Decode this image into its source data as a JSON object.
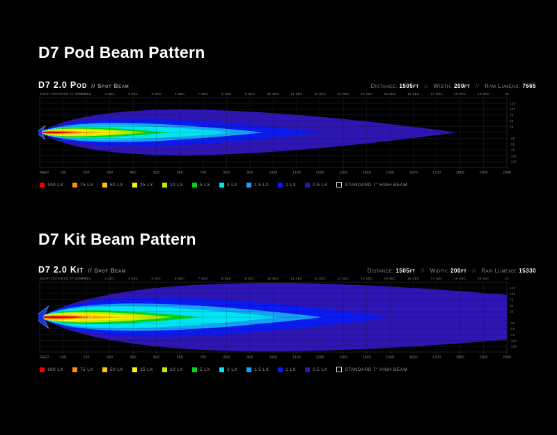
{
  "page": {
    "background": "#000000"
  },
  "separator": "//",
  "sections": [
    {
      "heading": "D7 Pod Beam Pattern"
    },
    {
      "heading": "D7 Kit Beam Pattern"
    }
  ],
  "legend": {
    "items": [
      {
        "label": "100 LX",
        "color": "#f50000",
        "type": "fill"
      },
      {
        "label": "75 LX",
        "color": "#ff9100",
        "type": "fill"
      },
      {
        "label": "50 LX",
        "color": "#ffc400",
        "type": "fill"
      },
      {
        "label": "25 LX",
        "color": "#fff200",
        "type": "fill"
      },
      {
        "label": "10 LX",
        "color": "#c3ea00",
        "type": "fill"
      },
      {
        "label": "5 LX",
        "color": "#00d41e",
        "type": "fill"
      },
      {
        "label": "3 LX",
        "color": "#00e4f4",
        "type": "fill"
      },
      {
        "label": "1.5 LX",
        "color": "#14a4f5",
        "type": "fill"
      },
      {
        "label": "1 LX",
        "color": "#0b1af0",
        "type": "fill"
      },
      {
        "label": "0.5 LX",
        "color": "#2e16b4",
        "type": "fill"
      },
      {
        "label": "Standard 7\" High Beam",
        "color": "none",
        "type": "outline"
      }
    ]
  },
  "chart_data": [
    {
      "type": "contour",
      "title": "D7 2.0 Pod",
      "subtitle": "// Spot Beam",
      "stats": [
        {
          "label": "Distance:",
          "value": "1505ft"
        },
        {
          "label": "Width:",
          "value": "200ft"
        },
        {
          "label": "Raw Lumens:",
          "value": "7665"
        }
      ],
      "top_axis": {
        "label": "Sight Distance at 60mph",
        "ticks": [
          {
            "ft": 200,
            "label": "2 sec"
          },
          {
            "ft": 300,
            "label": "3 sec"
          },
          {
            "ft": 400,
            "label": "4 sec"
          },
          {
            "ft": 500,
            "label": "5 sec"
          },
          {
            "ft": 600,
            "label": "6 sec"
          },
          {
            "ft": 700,
            "label": "7 sec"
          },
          {
            "ft": 800,
            "label": "8 sec"
          },
          {
            "ft": 900,
            "label": "9 sec"
          },
          {
            "ft": 1000,
            "label": "10 sec"
          },
          {
            "ft": 1100,
            "label": "11 sec"
          },
          {
            "ft": 1200,
            "label": "12 sec"
          },
          {
            "ft": 1300,
            "label": "13 sec"
          },
          {
            "ft": 1400,
            "label": "14 sec"
          },
          {
            "ft": 1500,
            "label": "15 sec"
          },
          {
            "ft": 1600,
            "label": "16 sec"
          },
          {
            "ft": 1700,
            "label": "17 sec"
          },
          {
            "ft": 1800,
            "label": "18 sec"
          },
          {
            "ft": 1900,
            "label": "19 sec"
          },
          {
            "ft": 2000,
            "label": "20"
          }
        ]
      },
      "x_axis": {
        "unit_label": "FEET",
        "min_ft": 0,
        "max_ft": 2000,
        "ticks_ft": [
          100,
          200,
          300,
          400,
          500,
          600,
          700,
          800,
          900,
          1000,
          1100,
          1200,
          1300,
          1400,
          1500,
          1600,
          1700,
          1800,
          1900,
          2000
        ]
      },
      "y_axis": {
        "min_ft": -150,
        "max_ft": 150,
        "ticks_ft": [
          125,
          100,
          75,
          50,
          25,
          -25,
          -50,
          -75,
          -100,
          -125
        ]
      },
      "contours": [
        {
          "lux": "100 lx",
          "color": "#f50000",
          "length_ft": 155,
          "half_width_ft": 4
        },
        {
          "lux": "75 lx",
          "color": "#ff9100",
          "length_ft": 215,
          "half_width_ft": 6.5
        },
        {
          "lux": "50 lx",
          "color": "#ffc400",
          "length_ft": 285,
          "half_width_ft": 9
        },
        {
          "lux": "25 lx",
          "color": "#fff200",
          "length_ft": 380,
          "half_width_ft": 12.5
        },
        {
          "lux": "10 lx",
          "color": "#c3ea00",
          "length_ft": 460,
          "half_width_ft": 17
        },
        {
          "lux": "5 lx",
          "color": "#00d41e",
          "length_ft": 555,
          "half_width_ft": 22
        },
        {
          "lux": "3 lx",
          "color": "#00e4f4",
          "length_ft": 830,
          "half_width_ft": 32
        },
        {
          "lux": "1.5 lx",
          "color": "#14a4f5",
          "length_ft": 960,
          "half_width_ft": 42
        },
        {
          "lux": "1 lx",
          "color": "#0b1af0",
          "length_ft": 1210,
          "half_width_ft": 60
        },
        {
          "lux": "0.5 lx",
          "color": "#2e16b4",
          "length_ft": 1790,
          "half_width_ft": 100
        }
      ],
      "reference_beam": {
        "label": "Standard 7\" High Beam",
        "length_ft": 215,
        "half_width_ft": 15
      },
      "arrow_scale": 1
    },
    {
      "type": "contour",
      "title": "D7 2.0 Kit",
      "subtitle": "// Spot Beam",
      "stats": [
        {
          "label": "Distance:",
          "value": "1505ft"
        },
        {
          "label": "Width:",
          "value": "200ft"
        },
        {
          "label": "Raw Lumens:",
          "value": "15330"
        }
      ],
      "top_axis": {
        "label": "Sight Distance at 60mph",
        "ticks": [
          {
            "ft": 200,
            "label": "2 sec"
          },
          {
            "ft": 300,
            "label": "3 sec"
          },
          {
            "ft": 400,
            "label": "4 sec"
          },
          {
            "ft": 500,
            "label": "5 sec"
          },
          {
            "ft": 600,
            "label": "6 sec"
          },
          {
            "ft": 700,
            "label": "7 sec"
          },
          {
            "ft": 800,
            "label": "8 sec"
          },
          {
            "ft": 900,
            "label": "9 sec"
          },
          {
            "ft": 1000,
            "label": "10 sec"
          },
          {
            "ft": 1100,
            "label": "11 sec"
          },
          {
            "ft": 1200,
            "label": "12 sec"
          },
          {
            "ft": 1300,
            "label": "13 sec"
          },
          {
            "ft": 1400,
            "label": "14 sec"
          },
          {
            "ft": 1500,
            "label": "15 sec"
          },
          {
            "ft": 1600,
            "label": "16 sec"
          },
          {
            "ft": 1700,
            "label": "17 sec"
          },
          {
            "ft": 1800,
            "label": "18 sec"
          },
          {
            "ft": 1900,
            "label": "19 sec"
          },
          {
            "ft": 2000,
            "label": "20"
          }
        ]
      },
      "x_axis": {
        "unit_label": "FEET",
        "min_ft": 0,
        "max_ft": 2000,
        "ticks_ft": [
          100,
          200,
          300,
          400,
          500,
          600,
          700,
          800,
          900,
          1000,
          1100,
          1200,
          1300,
          1400,
          1500,
          1600,
          1700,
          1800,
          1900,
          2000
        ]
      },
      "y_axis": {
        "min_ft": -150,
        "max_ft": 150,
        "ticks_ft": [
          125,
          100,
          75,
          50,
          25,
          -25,
          -50,
          -75,
          -100,
          -125
        ]
      },
      "contours": [
        {
          "lux": "100 lx",
          "color": "#f50000",
          "length_ft": 190,
          "half_width_ft": 5
        },
        {
          "lux": "75 lx",
          "color": "#ff9100",
          "length_ft": 260,
          "half_width_ft": 8
        },
        {
          "lux": "50 lx",
          "color": "#ffc400",
          "length_ft": 350,
          "half_width_ft": 11
        },
        {
          "lux": "25 lx",
          "color": "#fff200",
          "length_ft": 470,
          "half_width_ft": 16
        },
        {
          "lux": "10 lx",
          "color": "#c3ea00",
          "length_ft": 570,
          "half_width_ft": 23
        },
        {
          "lux": "5 lx",
          "color": "#00d41e",
          "length_ft": 690,
          "half_width_ft": 30
        },
        {
          "lux": "3 lx",
          "color": "#00e4f4",
          "length_ft": 1020,
          "half_width_ft": 48
        },
        {
          "lux": "1.5 lx",
          "color": "#14a4f5",
          "length_ft": 1210,
          "half_width_ft": 60
        },
        {
          "lux": "1 lx",
          "color": "#0b1af0",
          "length_ft": 1500,
          "half_width_ft": 85
        },
        {
          "lux": "0.5 lx",
          "color": "#2e16b4",
          "length_ft": 2900,
          "half_width_ft": 150
        }
      ],
      "reference_beam": {
        "label": "Standard 7\" High Beam",
        "length_ft": 230,
        "half_width_ft": 16
      },
      "arrow_scale": 1.6
    }
  ]
}
